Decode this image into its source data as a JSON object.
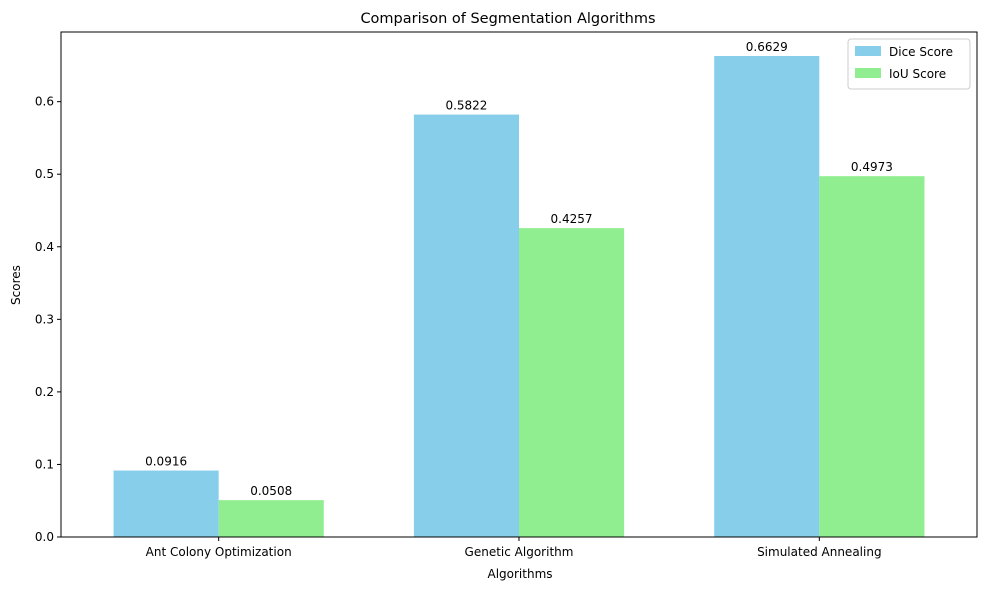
{
  "chart_data": {
    "type": "bar",
    "title": "Comparison of Segmentation Algorithms",
    "xlabel": "Algorithms",
    "ylabel": "Scores",
    "categories": [
      "Ant Colony Optimization",
      "Genetic Algorithm",
      "Simulated Annealing"
    ],
    "series": [
      {
        "name": "Dice Score",
        "color": "#87ceeb",
        "values": [
          0.0916,
          0.5822,
          0.6629
        ],
        "labels": [
          "0.0916",
          "0.5822",
          "0.6629"
        ]
      },
      {
        "name": "IoU Score",
        "color": "#90ee90",
        "values": [
          0.0508,
          0.4257,
          0.4973
        ],
        "labels": [
          "0.0508",
          "0.4257",
          "0.4973"
        ]
      }
    ],
    "ylim": [
      0,
      0.696
    ],
    "yticks": [
      0.0,
      0.1,
      0.2,
      0.3,
      0.4,
      0.5,
      0.6
    ],
    "ytick_labels": [
      "0.0",
      "0.1",
      "0.2",
      "0.3",
      "0.4",
      "0.5",
      "0.6"
    ],
    "grid": false,
    "legend_position": "top-right"
  }
}
